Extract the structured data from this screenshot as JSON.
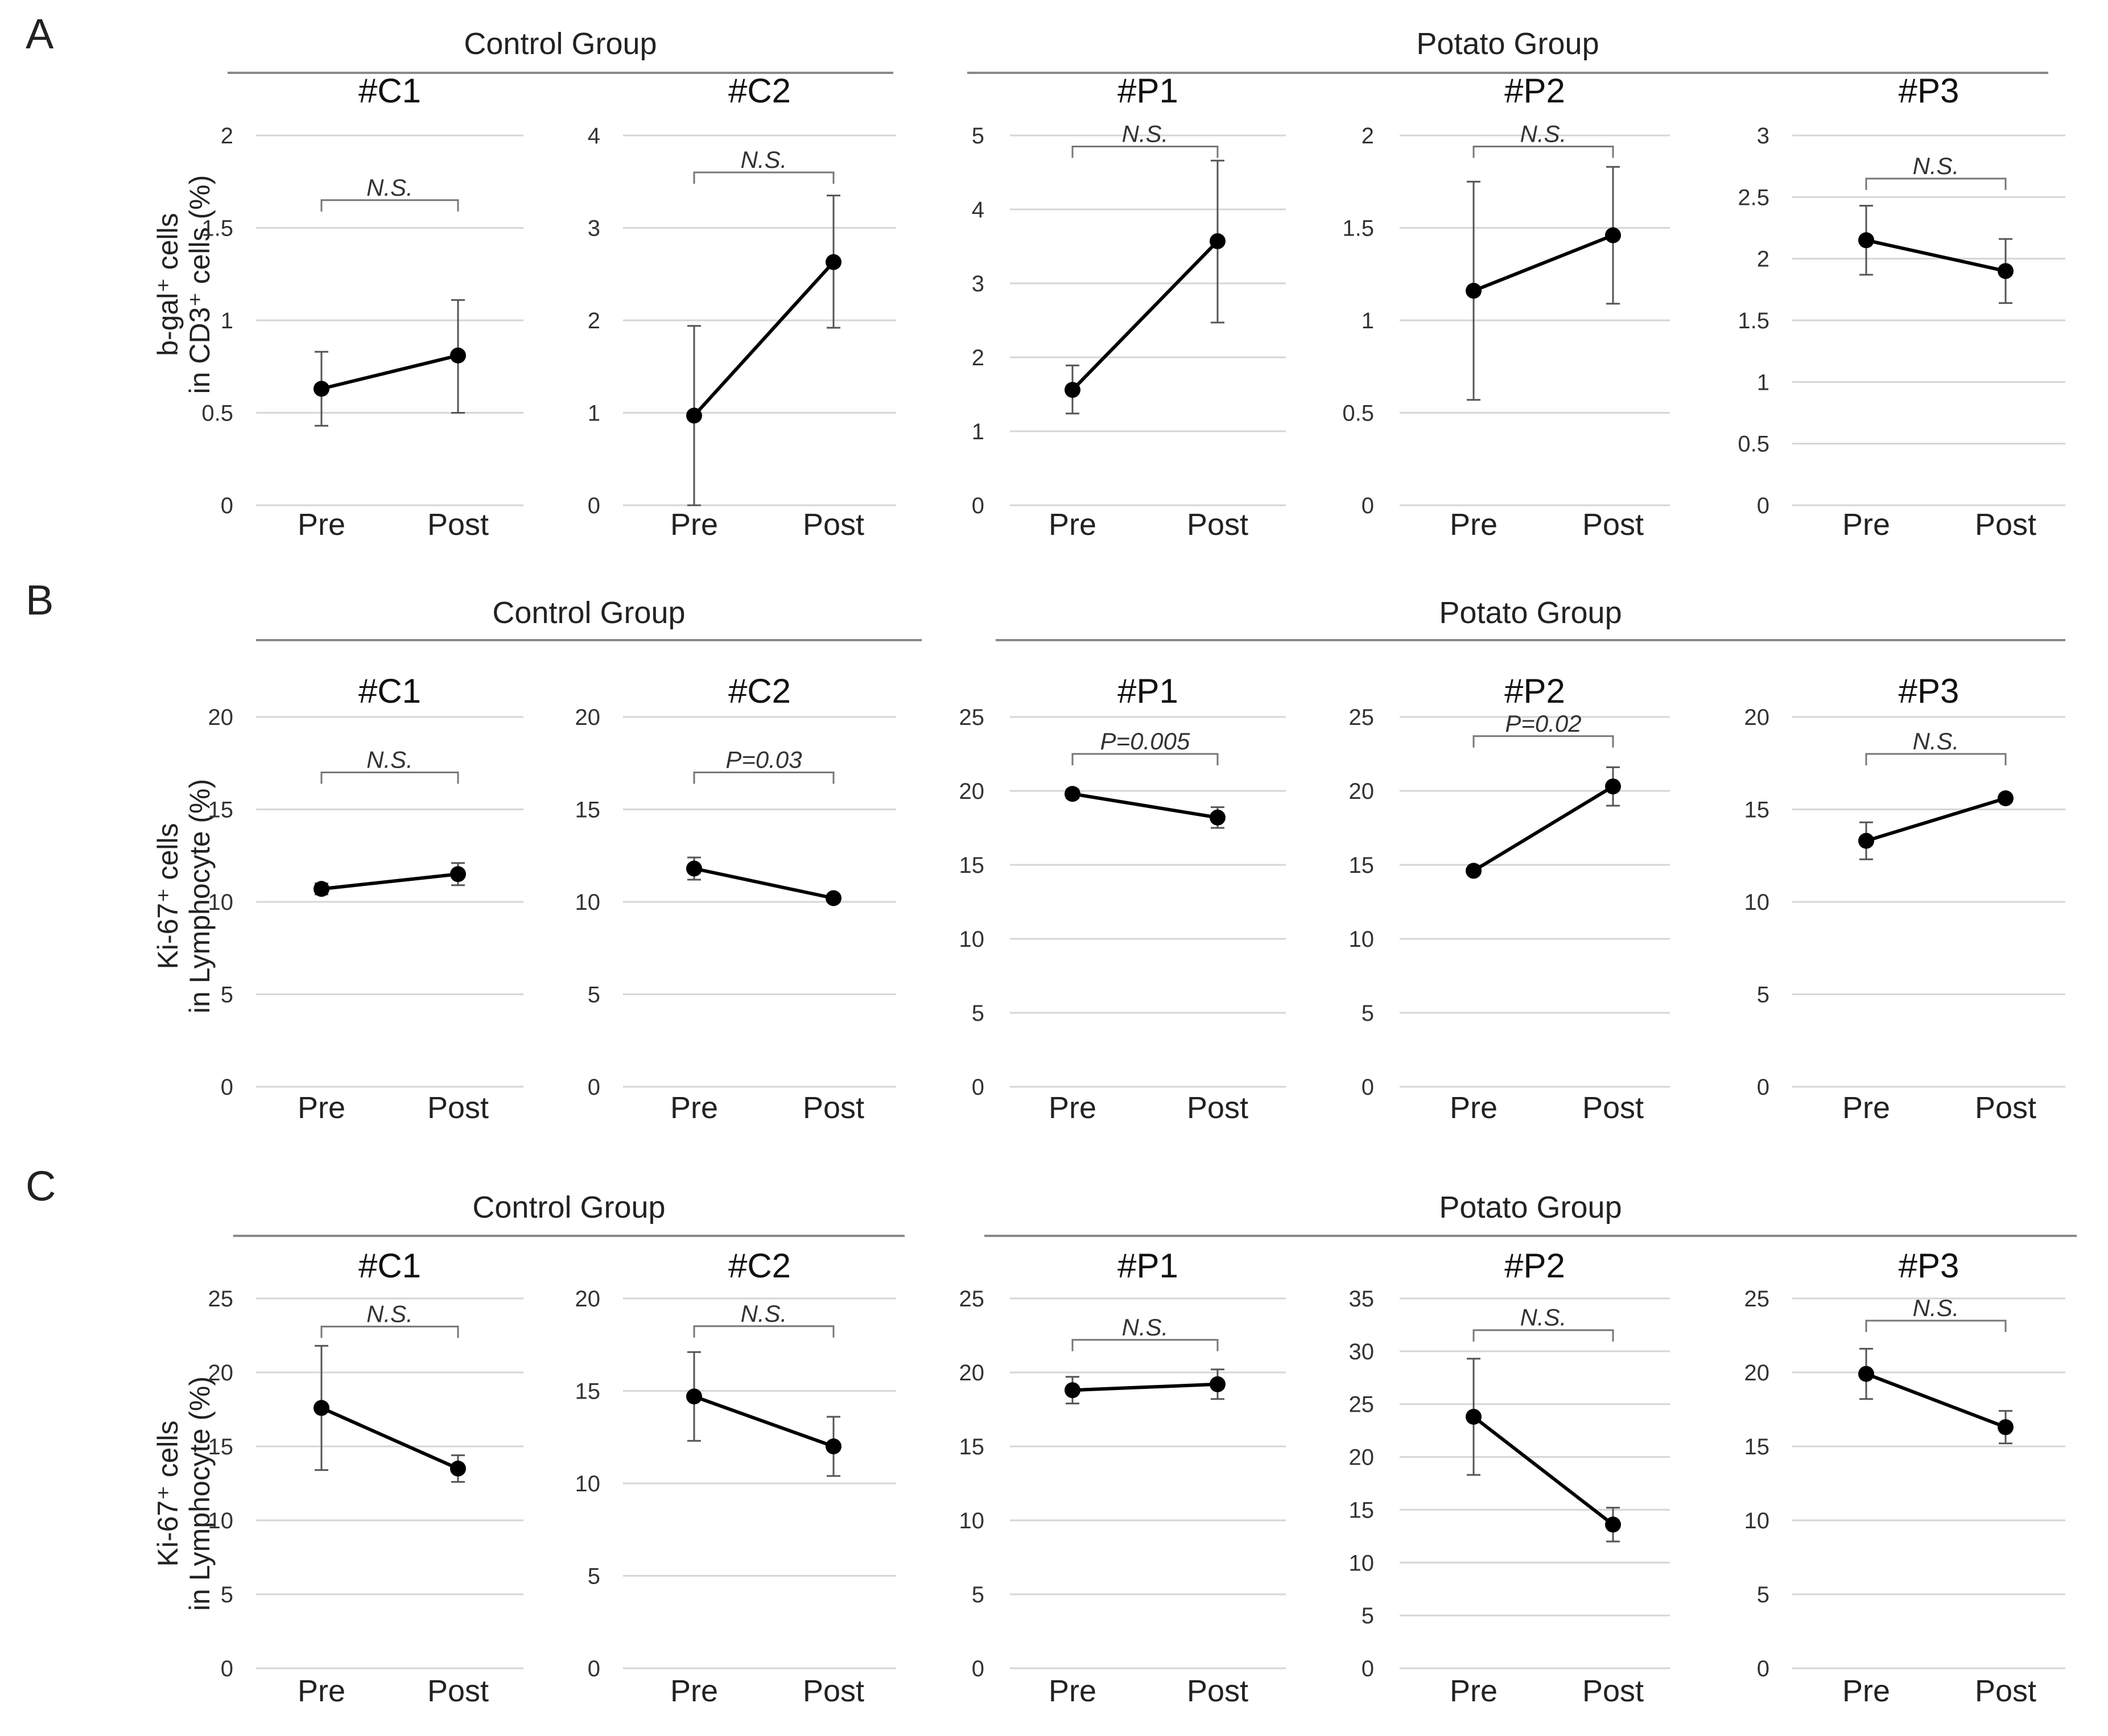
{
  "chart_data": [
    {
      "panel": "A",
      "y_axis_title": [
        "b-gal⁺ cells",
        "in CD3⁺ cells (%)"
      ],
      "groups": [
        "Control Group",
        "Potato Group"
      ],
      "x_categories": [
        "Pre",
        "Post"
      ],
      "charts": [
        {
          "type": "line",
          "title": "#C1",
          "group": "Control Group",
          "ylim": [
            0,
            2
          ],
          "yticks": [
            "0",
            "0.5",
            "1",
            "1.5",
            "2"
          ],
          "values": [
            0.63,
            0.81
          ],
          "errors": [
            [
              0.43,
              0.83
            ],
            [
              0.5,
              1.11
            ]
          ],
          "significance": "N.S.",
          "bracket_y": 1.65
        },
        {
          "type": "line",
          "title": "#C2",
          "group": "Control Group",
          "ylim": [
            0,
            4
          ],
          "yticks": [
            "0",
            "1",
            "2",
            "3",
            "4"
          ],
          "values": [
            0.97,
            2.63
          ],
          "errors": [
            [
              0,
              1.94
            ],
            [
              1.92,
              3.35
            ]
          ],
          "significance": "N.S.",
          "bracket_y": 3.6
        },
        {
          "type": "line",
          "title": "#P1",
          "group": "Potato Group",
          "ylim": [
            0,
            5
          ],
          "yticks": [
            "0",
            "1",
            "2",
            "3",
            "4",
            "5"
          ],
          "values": [
            1.56,
            3.57
          ],
          "errors": [
            [
              1.24,
              1.89
            ],
            [
              2.47,
              4.66
            ]
          ],
          "significance": "N.S.",
          "bracket_y": 4.85
        },
        {
          "type": "line",
          "title": "#P2",
          "group": "Potato Group",
          "ylim": [
            0,
            2
          ],
          "yticks": [
            "0",
            "0.5",
            "1",
            "1.5",
            "2"
          ],
          "values": [
            1.16,
            1.46
          ],
          "errors": [
            [
              0.57,
              1.75
            ],
            [
              1.09,
              1.83
            ]
          ],
          "significance": "N.S.",
          "bracket_y": 1.94
        },
        {
          "type": "line",
          "title": "#P3",
          "group": "Potato Group",
          "ylim": [
            0,
            3
          ],
          "yticks": [
            "0",
            "0.5",
            "1",
            "1.5",
            "2",
            "2.5",
            "3"
          ],
          "values": [
            2.15,
            1.9
          ],
          "errors": [
            [
              1.87,
              2.43
            ],
            [
              1.64,
              2.16
            ]
          ],
          "significance": "N.S.",
          "bracket_y": 2.65
        }
      ]
    },
    {
      "panel": "B",
      "y_axis_title": [
        "Ki-67⁺ cells",
        "in Lymphocyte (%)"
      ],
      "groups": [
        "Control Group",
        "Potato Group"
      ],
      "x_categories": [
        "Pre",
        "Post"
      ],
      "charts": [
        {
          "type": "line",
          "title": "#C1",
          "group": "Control Group",
          "ylim": [
            0,
            20
          ],
          "yticks": [
            "0",
            "5",
            "10",
            "15",
            "20"
          ],
          "values": [
            10.7,
            11.5
          ],
          "errors": [
            [
              10.4,
              11.0
            ],
            [
              10.9,
              12.1
            ]
          ],
          "significance": "N.S.",
          "bracket_y": 17.0
        },
        {
          "type": "line",
          "title": "#C2",
          "group": "Control Group",
          "ylim": [
            0,
            20
          ],
          "yticks": [
            "0",
            "5",
            "10",
            "15",
            "20"
          ],
          "values": [
            11.8,
            10.2
          ],
          "errors": [
            [
              11.2,
              12.4
            ],
            [
              10.0,
              10.4
            ]
          ],
          "significance": "P=0.03",
          "bracket_y": 17.0
        },
        {
          "type": "line",
          "title": "#P1",
          "group": "Potato Group",
          "ylim": [
            0,
            25
          ],
          "yticks": [
            "0",
            "5",
            "10",
            "15",
            "20",
            "25"
          ],
          "values": [
            19.8,
            18.2
          ],
          "errors": [
            [
              19.5,
              20.1
            ],
            [
              17.5,
              18.9
            ]
          ],
          "significance": "P=0.005",
          "bracket_y": 22.5
        },
        {
          "type": "line",
          "title": "#P2",
          "group": "Potato Group",
          "ylim": [
            0,
            25
          ],
          "yticks": [
            "0",
            "5",
            "10",
            "15",
            "20",
            "25"
          ],
          "values": [
            14.6,
            20.3
          ],
          "errors": [
            [
              14.4,
              14.8
            ],
            [
              19.0,
              21.6
            ]
          ],
          "significance": "P=0.02",
          "bracket_y": 23.7
        },
        {
          "type": "line",
          "title": "#P3",
          "group": "Potato Group",
          "ylim": [
            0,
            20
          ],
          "yticks": [
            "0",
            "5",
            "10",
            "15",
            "20"
          ],
          "values": [
            13.3,
            15.6
          ],
          "errors": [
            [
              12.3,
              14.3
            ],
            [
              15.4,
              15.8
            ]
          ],
          "significance": "N.S.",
          "bracket_y": 18.0
        }
      ]
    },
    {
      "panel": "C",
      "y_axis_title": [
        "Ki-67⁺ cells",
        "in Lymphocyte (%)"
      ],
      "groups": [
        "Control Group",
        "Potato Group"
      ],
      "x_categories": [
        "Pre",
        "Post"
      ],
      "charts": [
        {
          "type": "line",
          "title": "#C1",
          "group": "Control Group",
          "ylim": [
            0,
            25
          ],
          "yticks": [
            "0",
            "5",
            "10",
            "15",
            "20",
            "25"
          ],
          "values": [
            17.6,
            13.5
          ],
          "errors": [
            [
              13.4,
              21.8
            ],
            [
              12.6,
              14.4
            ]
          ],
          "significance": "N.S.",
          "bracket_y": 23.1
        },
        {
          "type": "line",
          "title": "#C2",
          "group": "Control Group",
          "ylim": [
            0,
            20
          ],
          "yticks": [
            "0",
            "5",
            "10",
            "15",
            "20"
          ],
          "values": [
            14.7,
            12.0
          ],
          "errors": [
            [
              12.3,
              17.1
            ],
            [
              10.4,
              13.6
            ]
          ],
          "significance": "N.S.",
          "bracket_y": 18.5
        },
        {
          "type": "line",
          "title": "#P1",
          "group": "Potato Group",
          "ylim": [
            0,
            25
          ],
          "yticks": [
            "0",
            "5",
            "10",
            "15",
            "20",
            "25"
          ],
          "values": [
            18.8,
            19.2
          ],
          "errors": [
            [
              17.9,
              19.7
            ],
            [
              18.2,
              20.2
            ]
          ],
          "significance": "N.S.",
          "bracket_y": 22.2
        },
        {
          "type": "line",
          "title": "#P2",
          "group": "Potato Group",
          "ylim": [
            0,
            35
          ],
          "yticks": [
            "0",
            "5",
            "10",
            "15",
            "20",
            "25",
            "30",
            "35"
          ],
          "values": [
            23.8,
            13.6
          ],
          "errors": [
            [
              18.3,
              29.3
            ],
            [
              12.0,
              15.2
            ]
          ],
          "significance": "N.S.",
          "bracket_y": 32.0
        },
        {
          "type": "line",
          "title": "#P3",
          "group": "Potato Group",
          "ylim": [
            0,
            25
          ],
          "yticks": [
            "0",
            "5",
            "10",
            "15",
            "20",
            "25"
          ],
          "values": [
            19.9,
            16.3
          ],
          "errors": [
            [
              18.2,
              21.6
            ],
            [
              15.2,
              17.4
            ]
          ],
          "significance": "N.S.",
          "bracket_y": 23.5
        }
      ]
    }
  ]
}
